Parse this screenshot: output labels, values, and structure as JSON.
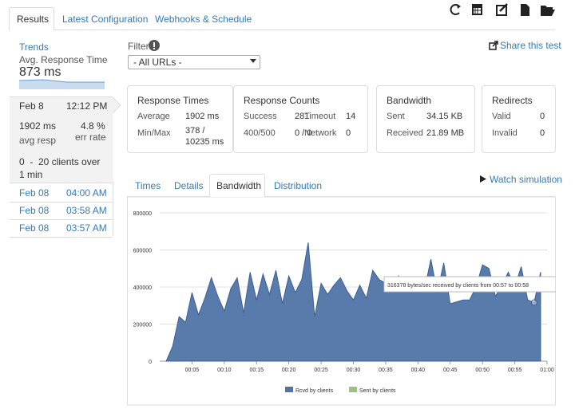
{
  "tabs": [
    "Results",
    "Latest Configuration",
    "Webhooks & Schedule"
  ],
  "sidebar": {
    "trends": "Trends",
    "metric": "Avg. Response Time",
    "metric_value": "873 ms",
    "selected": {
      "date": "Feb 8",
      "time": "12:12 PM",
      "avg_resp": "1902 ms",
      "err_rate": "4.8 %",
      "avg_resp_label": "avg resp",
      "err_rate_label": "err rate",
      "clients": "0  -  20 clients over 1 min"
    },
    "runs": [
      {
        "date": "Feb 08",
        "time": "04:00 AM"
      },
      {
        "date": "Feb 08",
        "time": "03:58 AM"
      },
      {
        "date": "Feb 08",
        "time": "03:57 AM"
      }
    ]
  },
  "filter": {
    "label": "Filter",
    "select": "- All URLs -"
  },
  "share": "Share this test",
  "cards": [
    {
      "title": "Response Times",
      "rows": [
        [
          "Average",
          "1902 ms"
        ],
        [
          "Min/Max",
          "378 / 10235 ms"
        ]
      ]
    },
    {
      "title": "Response Counts",
      "rows": [
        [
          "Success",
          "281",
          "Timeout",
          "14"
        ],
        [
          "400/500",
          "0 / 0",
          "Network",
          "0"
        ]
      ]
    },
    {
      "title": "Bandwidth",
      "rows": [
        [
          "Sent",
          "34.15 KB"
        ],
        [
          "Received",
          "21.89 MB"
        ]
      ]
    },
    {
      "title": "Redirects",
      "rows": [
        [
          "Valid",
          "0"
        ],
        [
          "Invalid",
          "0"
        ]
      ]
    }
  ],
  "chart_tabs": [
    "Times",
    "Details",
    "Bandwidth",
    "Distribution"
  ],
  "watch": "Watch simulation",
  "chart_data": {
    "type": "area",
    "x": [
      1,
      2,
      3,
      4,
      5,
      6,
      7,
      8,
      9,
      10,
      11,
      12,
      13,
      14,
      15,
      16,
      17,
      18,
      19,
      20,
      21,
      22,
      23,
      24,
      25,
      26,
      27,
      28,
      29,
      30,
      31,
      32,
      33,
      34,
      35,
      36,
      37,
      38,
      39,
      40,
      41,
      42,
      43,
      44,
      45,
      46,
      47,
      48,
      49,
      50,
      51,
      52,
      53,
      54,
      55,
      56,
      57,
      58,
      59
    ],
    "series": [
      {
        "name": "Rcvd by clients",
        "color": "#4f74a8",
        "values": [
          0,
          80000,
          240000,
          210000,
          370000,
          250000,
          340000,
          450000,
          350000,
          270000,
          390000,
          450000,
          260000,
          480000,
          330000,
          470000,
          360000,
          490000,
          310000,
          460000,
          370000,
          440000,
          640000,
          240000,
          420000,
          360000,
          410000,
          450000,
          380000,
          330000,
          410000,
          340000,
          490000,
          440000,
          420000,
          400000,
          460000,
          390000,
          450000,
          410000,
          380000,
          550000,
          370000,
          530000,
          310000,
          320000,
          330000,
          330000,
          400000,
          520000,
          500000,
          350000,
          410000,
          480000,
          400000,
          510000,
          330000,
          316378,
          480000
        ]
      },
      {
        "name": "Sent by clients",
        "color": "#9bc27e",
        "values": [
          0,
          0,
          0,
          0,
          0,
          0,
          0,
          0,
          0,
          0,
          0,
          0,
          0,
          0,
          0,
          0,
          0,
          0,
          0,
          0,
          0,
          0,
          0,
          0,
          0,
          0,
          0,
          0,
          0,
          0,
          0,
          0,
          0,
          0,
          0,
          0,
          0,
          0,
          0,
          0,
          0,
          0,
          0,
          0,
          0,
          0,
          0,
          0,
          0,
          0,
          0,
          0,
          0,
          0,
          0,
          0,
          0,
          0,
          0
        ]
      }
    ],
    "xlim": [
      0,
      60
    ],
    "xticks": [
      {
        "value": 5,
        "label": "00:05"
      },
      {
        "value": 10,
        "label": "00:10"
      },
      {
        "value": 15,
        "label": "00:15"
      },
      {
        "value": 20,
        "label": "00:20"
      },
      {
        "value": 25,
        "label": "00:25"
      },
      {
        "value": 30,
        "label": "00:30"
      },
      {
        "value": 35,
        "label": "00:35"
      },
      {
        "value": 40,
        "label": "00:40"
      },
      {
        "value": 45,
        "label": "00:45"
      },
      {
        "value": 50,
        "label": "00:50"
      },
      {
        "value": 55,
        "label": "00:55"
      },
      {
        "value": 60,
        "label": "01:00"
      }
    ],
    "ylim": [
      0,
      800000
    ],
    "yticks": [
      0,
      200000,
      400000,
      600000,
      800000
    ],
    "grid": true,
    "tooltip": "316378 bytes/sec received by clients from 00:57 to 00:58",
    "tooltip_index": 57
  }
}
